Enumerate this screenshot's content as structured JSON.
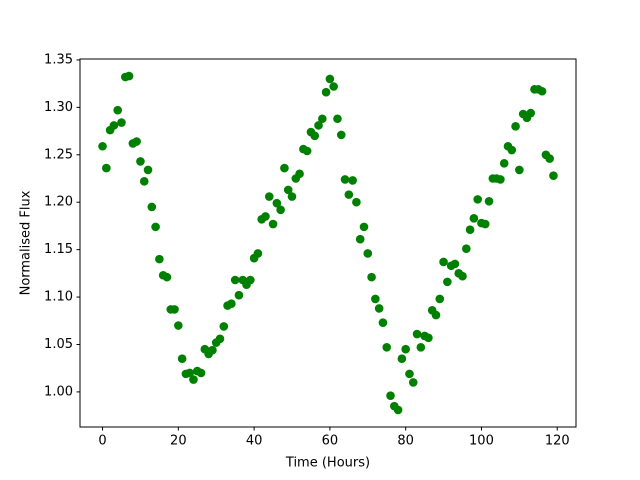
{
  "chart_data": {
    "type": "scatter",
    "xlabel": "Time (Hours)",
    "ylabel": "Normalised Flux",
    "color": "#008000",
    "x": [
      0,
      1,
      2,
      3,
      4,
      5,
      6,
      7,
      8,
      9,
      10,
      11,
      12,
      13,
      14,
      15,
      16,
      17,
      18,
      19,
      20,
      21,
      22,
      23,
      24,
      25,
      26,
      27,
      28,
      29,
      30,
      31,
      32,
      33,
      34,
      35,
      36,
      37,
      38,
      39,
      40,
      41,
      42,
      43,
      44,
      45,
      46,
      47,
      48,
      49,
      50,
      51,
      52,
      53,
      54,
      55,
      56,
      57,
      58,
      59,
      60,
      61,
      62,
      63,
      64,
      65,
      66,
      67,
      68,
      69,
      70,
      71,
      72,
      73,
      74,
      75,
      76,
      77,
      78,
      79,
      80,
      81,
      82,
      83,
      84,
      85,
      86,
      87,
      88,
      89,
      90,
      91,
      92,
      93,
      94,
      95,
      96,
      97,
      98,
      99,
      100,
      101,
      102,
      103,
      104,
      105,
      106,
      107,
      108,
      109,
      110,
      111,
      112,
      113,
      114,
      115,
      116,
      117,
      118,
      119
    ],
    "y": [
      1.259,
      1.236,
      1.276,
      1.281,
      1.297,
      1.284,
      1.332,
      1.333,
      1.262,
      1.264,
      1.243,
      1.222,
      1.234,
      1.195,
      1.174,
      1.14,
      1.123,
      1.121,
      1.087,
      1.087,
      1.07,
      1.035,
      1.019,
      1.02,
      1.013,
      1.022,
      1.02,
      1.045,
      1.04,
      1.044,
      1.052,
      1.056,
      1.069,
      1.091,
      1.093,
      1.118,
      1.102,
      1.118,
      1.113,
      1.118,
      1.141,
      1.146,
      1.182,
      1.185,
      1.206,
      1.177,
      1.199,
      1.192,
      1.236,
      1.213,
      1.206,
      1.225,
      1.23,
      1.256,
      1.254,
      1.274,
      1.27,
      1.281,
      1.288,
      1.316,
      1.33,
      1.322,
      1.288,
      1.271,
      1.224,
      1.208,
      1.223,
      1.2,
      1.161,
      1.174,
      1.146,
      1.121,
      1.098,
      1.088,
      1.073,
      1.047,
      0.996,
      0.985,
      0.981,
      1.035,
      1.045,
      1.019,
      1.01,
      1.061,
      1.047,
      1.059,
      1.057,
      1.086,
      1.081,
      1.098,
      1.137,
      1.116,
      1.133,
      1.135,
      1.125,
      1.122,
      1.151,
      1.171,
      1.183,
      1.203,
      1.178,
      1.177,
      1.201,
      1.225,
      1.225,
      1.224,
      1.241,
      1.259,
      1.255,
      1.28,
      1.234,
      1.293,
      1.289,
      1.294,
      1.319,
      1.319,
      1.317,
      1.25,
      1.246,
      1.228
    ],
    "xlim": [
      -5.95,
      124.95
    ],
    "ylim": [
      0.963,
      1.351
    ],
    "xticks": [
      0,
      20,
      40,
      60,
      80,
      100,
      120
    ],
    "yticks": [
      {
        "value": 1,
        "label": "1.00"
      },
      {
        "value": 1.05,
        "label": "1.05"
      },
      {
        "value": 1.1,
        "label": "1.10"
      },
      {
        "value": 1.15,
        "label": "1.15"
      },
      {
        "value": 1.2,
        "label": "1.20"
      },
      {
        "value": 1.25,
        "label": "1.25"
      },
      {
        "value": 1.3,
        "label": "1.30"
      },
      {
        "value": 1.35,
        "label": "1.35"
      }
    ]
  }
}
